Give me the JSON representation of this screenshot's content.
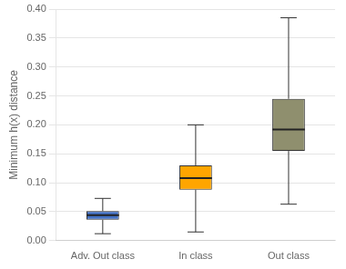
{
  "chart_data": {
    "type": "box",
    "ylabel": "Minimum h(x) distance",
    "categories": [
      "Adv. Out class",
      "In class",
      "Out class"
    ],
    "values": [
      {
        "low": 0.012,
        "q1": 0.036,
        "median": 0.044,
        "q3": 0.051,
        "high": 0.073
      },
      {
        "low": 0.015,
        "q1": 0.088,
        "median": 0.108,
        "q3": 0.13,
        "high": 0.2
      },
      {
        "low": 0.063,
        "q1": 0.155,
        "median": 0.192,
        "q3": 0.245,
        "high": 0.385
      }
    ],
    "colors": [
      "#4472c4",
      "#ffa500",
      "#8f8f6e"
    ],
    "ylim": [
      0.0,
      0.4
    ],
    "yticks": [
      {
        "value": 0.0,
        "label": "0.00"
      },
      0.05,
      {
        "value": 0.1,
        "label": "0.10"
      },
      0.15,
      {
        "value": 0.2,
        "label": "0.20"
      },
      0.25,
      {
        "value": 0.3,
        "label": "0.30"
      },
      0.35,
      {
        "value": 0.4,
        "label": "0.40"
      }
    ],
    "grid": true,
    "legend": false
  }
}
